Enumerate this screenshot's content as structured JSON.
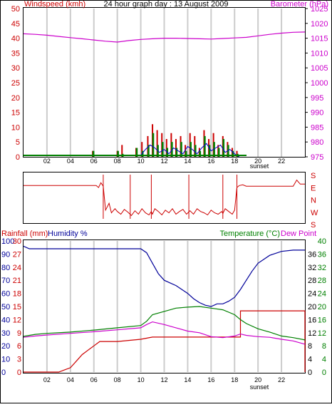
{
  "colors": {
    "wind": "#008000",
    "wind_gust": "#cc0000",
    "wind_avg": "#0000cc",
    "barometer": "#cc00cc",
    "direction": "#cc0000",
    "rainfall": "#cc0000",
    "humidity": "#000099",
    "temperature": "#008000",
    "dewpoint": "#cc00cc",
    "grid": "#cccccc",
    "axis": "#000000",
    "left_scale": "#cc0000",
    "right_scale_baro": "#cc00cc",
    "right_scale_temp": "#008000"
  },
  "chart_data": [
    {
      "type": "line",
      "title": "24 hour graph day : 13 August 2009",
      "ylabel": "Windspeed (kmh)",
      "y2label": "Barometer (hPa)",
      "x_ticks": [
        "02",
        "04",
        "06",
        "08",
        "10",
        "12",
        "14",
        "16",
        "18",
        "20",
        "22"
      ],
      "x_note": "sunset",
      "xlim": [
        0,
        24
      ],
      "ylim": [
        0,
        50
      ],
      "y_ticks": [
        "0",
        "5",
        "10",
        "15",
        "20",
        "25",
        "30",
        "35",
        "40",
        "45",
        "50"
      ],
      "y2lim": [
        975,
        1025
      ],
      "y2_ticks": [
        "975",
        "980",
        "985",
        "990",
        "995",
        "1000",
        "1005",
        "1010",
        "1015",
        "1020",
        "1025"
      ],
      "grid": true,
      "barometer": {
        "x": [
          0,
          1,
          2,
          3,
          4,
          5,
          6,
          7,
          8,
          9,
          10,
          11,
          12,
          13,
          14,
          15,
          16,
          17,
          18,
          19,
          20,
          21,
          22,
          23,
          24
        ],
        "y": [
          1016.5,
          1016.3,
          1016.0,
          1015.6,
          1015.2,
          1014.8,
          1014.4,
          1014.0,
          1013.7,
          1014.2,
          1014.6,
          1014.8,
          1015.0,
          1015.0,
          1014.9,
          1014.8,
          1014.7,
          1014.9,
          1015.1,
          1015.3,
          1015.8,
          1016.3,
          1016.7,
          1017.0,
          1017.1
        ]
      },
      "wind_bars": {
        "x": [
          5.9,
          8.0,
          8.4,
          9.6,
          10.1,
          10.6,
          11.0,
          11.4,
          11.8,
          12.2,
          12.6,
          13.0,
          13.4,
          13.8,
          14.2,
          14.6,
          15.0,
          15.4,
          15.8,
          16.2,
          16.6,
          17.0,
          17.4,
          17.8,
          18.2
        ],
        "gust": [
          2,
          2,
          4,
          3,
          5,
          7,
          11,
          9,
          8,
          6,
          8,
          6,
          7,
          4,
          8,
          7,
          3,
          9,
          6,
          8,
          4,
          7,
          5,
          3,
          2
        ],
        "avg": [
          2,
          2,
          1,
          3,
          2,
          4,
          8,
          4,
          5,
          3,
          5,
          3,
          5,
          2,
          5,
          4,
          2,
          7,
          4,
          5,
          3,
          6,
          4,
          2,
          1
        ]
      },
      "wind_avg_line": {
        "x": [
          10.0,
          10.4,
          10.8,
          11.2,
          11.6,
          12.0,
          12.4,
          12.8,
          13.2,
          13.6,
          14.0,
          14.4,
          14.8,
          15.2,
          15.6,
          16.0,
          16.4,
          16.8,
          17.2,
          17.6,
          18.0,
          18.4
        ],
        "y": [
          0.5,
          2.5,
          4.0,
          3.0,
          1.5,
          2.5,
          1.0,
          3.0,
          2.0,
          1.0,
          3.5,
          2.5,
          1.0,
          3.0,
          4.5,
          2.0,
          3.0,
          4.0,
          1.5,
          2.5,
          1.0,
          0
        ]
      }
    },
    {
      "type": "line",
      "title": "",
      "y2_ticks": [
        "S",
        "E",
        "N",
        "W",
        "S"
      ],
      "xlim": [
        0,
        24
      ],
      "ylim": [
        0,
        360
      ],
      "direction": {
        "x": [
          0,
          6.2,
          6.4,
          6.6,
          6.8,
          7.0,
          7.3,
          7.5,
          7.8,
          8.0,
          8.3,
          8.6,
          8.9,
          9.2,
          9.5,
          9.8,
          10.1,
          10.4,
          10.7,
          10.9,
          11.0,
          11.2,
          11.5,
          11.8,
          12.1,
          12.4,
          12.7,
          13.0,
          13.3,
          13.6,
          13.9,
          14.2,
          14.5,
          14.8,
          15.1,
          15.4,
          15.7,
          16.0,
          16.3,
          16.6,
          16.9,
          17.0,
          17.2,
          17.5,
          17.8,
          18.0,
          18.2,
          18.4,
          18.7,
          19.0,
          20.0,
          22.0,
          23.0,
          23.3,
          23.6,
          24.0
        ],
        "y": [
          270,
          270,
          255,
          290,
          265,
          90,
          140,
          70,
          100,
          80,
          60,
          95,
          75,
          50,
          85,
          60,
          100,
          70,
          55,
          80,
          60,
          100,
          80,
          55,
          90,
          70,
          100,
          60,
          80,
          95,
          60,
          85,
          60,
          100,
          80,
          70,
          55,
          90,
          70,
          60,
          80,
          65,
          100,
          80,
          60,
          90,
          255,
          270,
          275,
          265,
          265,
          265,
          265,
          310,
          280,
          280
        ]
      },
      "spikes": [
        6.8,
        9.1,
        10.9,
        14.1,
        17.0,
        18.2
      ]
    },
    {
      "type": "line",
      "ylabel": "Rainfall (mm)",
      "ylabel2": "Humidity %",
      "y2label": "Temperature (°C)",
      "y2label2": "Dew Point",
      "x_ticks": [
        "02",
        "04",
        "06",
        "08",
        "10",
        "12",
        "14",
        "16",
        "18",
        "20",
        "22"
      ],
      "x_note": "sunset",
      "xlim": [
        0,
        24
      ],
      "humidity_ticks": [
        "0",
        "10",
        "20",
        "30",
        "40",
        "50",
        "60",
        "70",
        "80",
        "90",
        "100"
      ],
      "rain_ticks": [
        "0",
        "3",
        "6",
        "9",
        "12",
        "15",
        "18",
        "21",
        "24",
        "27",
        "30"
      ],
      "temp_ticks": [
        "0",
        "4",
        "8",
        "12",
        "16",
        "20",
        "24",
        "28",
        "32",
        "36",
        "40"
      ],
      "rain_ticks_inner": [
        "0",
        "4",
        "8",
        "12",
        "16",
        "20",
        "24",
        "28",
        "32",
        "36"
      ],
      "humidity": {
        "x": [
          0,
          0.5,
          2,
          4,
          6,
          8,
          10,
          10.5,
          11,
          11.5,
          12,
          12.5,
          13,
          13.5,
          14,
          14.5,
          15,
          15.5,
          16,
          16.5,
          17,
          17.5,
          18,
          18.5,
          19,
          19.5,
          20,
          21,
          22,
          23,
          24
        ],
        "y": [
          96,
          94,
          94,
          94,
          94,
          94,
          94,
          91,
          83,
          75,
          70,
          68,
          66,
          63,
          60,
          56,
          53,
          51,
          50,
          52,
          52,
          54,
          57,
          63,
          70,
          77,
          83,
          89,
          92,
          93,
          93
        ]
      },
      "temperature": {
        "x": [
          0,
          1,
          2,
          4,
          6,
          8,
          10,
          10.5,
          11,
          12,
          13,
          14,
          15,
          16,
          17,
          18,
          18.5,
          19,
          20,
          21,
          22,
          23,
          24
        ],
        "y": [
          10.9,
          11.5,
          11.8,
          12.2,
          12.8,
          13.5,
          14.2,
          15.5,
          17.5,
          18.5,
          19.5,
          19.8,
          20.0,
          19.5,
          19.0,
          17.5,
          16.0,
          14.8,
          13.2,
          12.2,
          11.0,
          10.5,
          9.8
        ]
      },
      "dewpoint": {
        "x": [
          0,
          1,
          2,
          4,
          6,
          8,
          10,
          10.5,
          11,
          12,
          13,
          14,
          15,
          16,
          17,
          18,
          18.5,
          19,
          20,
          21,
          22,
          23,
          24
        ],
        "y": [
          10.6,
          11.0,
          11.3,
          11.8,
          12.3,
          12.9,
          13.5,
          14.5,
          15.3,
          14.5,
          13.5,
          12.5,
          12.0,
          10.8,
          10.5,
          11.0,
          11.6,
          11.2,
          10.8,
          10.6,
          10.0,
          9.5,
          8.5
        ]
      },
      "rainfall": {
        "x": [
          0,
          2.0,
          3.0,
          3.5,
          4.0,
          4.5,
          5.0,
          5.5,
          6.0,
          6.5,
          8.0,
          10.0,
          11.0,
          12.0,
          14.0,
          16.0,
          18.0,
          18.5,
          18.5,
          24.0,
          24.0
        ],
        "y": [
          0,
          0,
          0,
          0.5,
          1.0,
          2.5,
          4.0,
          5.0,
          6.0,
          7.0,
          7.0,
          7.5,
          8.0,
          8.0,
          8.0,
          8.0,
          8.0,
          8.0,
          14.0,
          14.0,
          0
        ]
      }
    }
  ]
}
